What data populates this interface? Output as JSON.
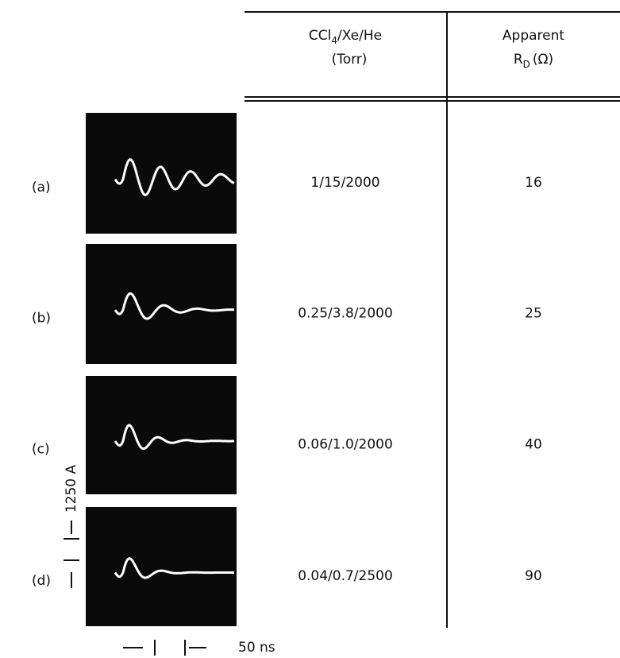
{
  "header": {
    "composition": {
      "main": "CCl",
      "sub": "4",
      "rest": "/Xe/He",
      "unit": "(Torr)"
    },
    "resistance": {
      "line1": "Apparent",
      "main": "R",
      "sub": "D",
      "unit": "(Ω)"
    }
  },
  "rows": [
    {
      "label": "(a)",
      "composition": "1/15/2000",
      "resistance": 16
    },
    {
      "label": "(b)",
      "composition": "0.25/3.8/2000",
      "resistance": 25
    },
    {
      "label": "(c)",
      "composition": "0.06/1.0/2000",
      "resistance": 40
    },
    {
      "label": "(d)",
      "composition": "0.04/0.7/2500",
      "resistance": 90
    }
  ],
  "scale": {
    "current": "1250 A",
    "time": "50 ns"
  }
}
